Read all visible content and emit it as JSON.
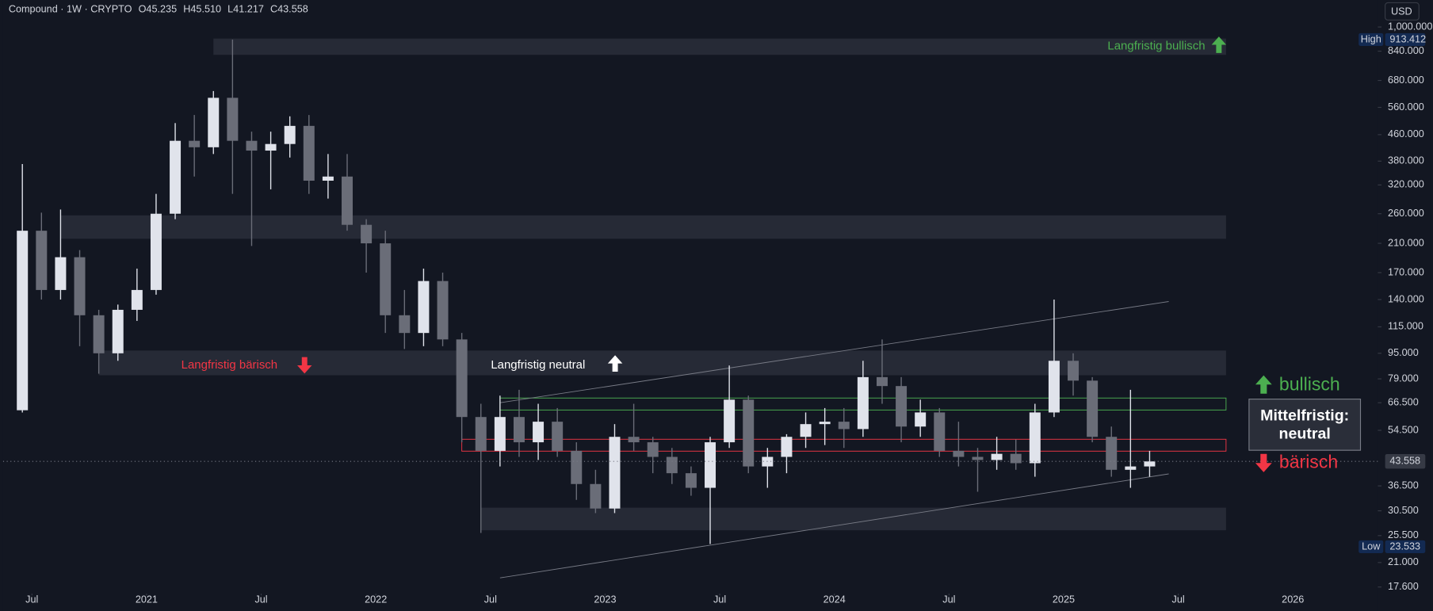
{
  "header": {
    "symbol": "Compound · 1W · CRYPTO",
    "open": "O45.235",
    "high": "H45.510",
    "low": "L41.217",
    "close": "C43.558"
  },
  "currency_button": "USD",
  "chart_data": {
    "type": "candlestick",
    "x": [
      "2020-06",
      "2020-07",
      "2020-08",
      "2020-09",
      "2020-10",
      "2020-11",
      "2020-12",
      "2021-01",
      "2021-02",
      "2021-03",
      "2021-04",
      "2021-05",
      "2021-06",
      "2021-07",
      "2021-08",
      "2021-09",
      "2021-10",
      "2021-11",
      "2021-12",
      "2022-01",
      "2022-02",
      "2022-03",
      "2022-04",
      "2022-05",
      "2022-06",
      "2022-07",
      "2022-08",
      "2022-09",
      "2022-10",
      "2022-11",
      "2022-12",
      "2023-01",
      "2023-02",
      "2023-03",
      "2023-04",
      "2023-05",
      "2023-06",
      "2023-07",
      "2023-08",
      "2023-09",
      "2023-10",
      "2023-11",
      "2023-12",
      "2024-01",
      "2024-02",
      "2024-03",
      "2024-04",
      "2024-05",
      "2024-06",
      "2024-07",
      "2024-08",
      "2024-09",
      "2024-10",
      "2024-11",
      "2024-12",
      "2025-01",
      "2025-02",
      "2025-03",
      "2025-04",
      "2025-05"
    ],
    "open": [
      63,
      230,
      150,
      190,
      125,
      95,
      130,
      150,
      260,
      440,
      420,
      600,
      440,
      410,
      430,
      490,
      330,
      340,
      240,
      210,
      125,
      110,
      160,
      105,
      60,
      47,
      60,
      50,
      58,
      47,
      37,
      31,
      52,
      50,
      45,
      40,
      36,
      50,
      68,
      42,
      45,
      52,
      57,
      58,
      55,
      80,
      75,
      56,
      62,
      47,
      45,
      44,
      46,
      43,
      62,
      90,
      78,
      52,
      41,
      42
    ],
    "high": [
      372,
      262,
      268,
      200,
      130,
      135,
      175,
      300,
      500,
      530,
      630,
      913,
      470,
      470,
      525,
      530,
      400,
      400,
      250,
      230,
      150,
      175,
      170,
      110,
      66,
      70,
      73,
      66,
      64,
      50,
      41,
      57,
      66,
      52,
      48,
      42,
      52,
      87,
      70,
      48,
      53,
      62,
      64,
      64,
      90,
      105,
      80,
      68,
      64,
      58,
      48,
      52,
      51,
      66,
      140,
      95,
      80,
      56,
      73,
      47
    ],
    "low": [
      62,
      140,
      140,
      100,
      82,
      90,
      120,
      145,
      250,
      340,
      400,
      300,
      206,
      310,
      390,
      300,
      290,
      230,
      170,
      110,
      98,
      100,
      100,
      50,
      26,
      42,
      45,
      44,
      45,
      33,
      30,
      30,
      47,
      40,
      37,
      34,
      24,
      48,
      40,
      36,
      40,
      48,
      49,
      48,
      52,
      66,
      50,
      52,
      45,
      42,
      35,
      41,
      41,
      39,
      60,
      70,
      50,
      39,
      36,
      39
    ],
    "close": [
      230,
      150,
      190,
      125,
      95,
      130,
      150,
      260,
      440,
      420,
      600,
      440,
      410,
      430,
      490,
      330,
      340,
      240,
      210,
      125,
      110,
      160,
      105,
      60,
      47,
      60,
      50,
      58,
      47,
      37,
      31,
      52,
      50,
      45,
      40,
      36,
      50,
      68,
      42,
      45,
      52,
      57,
      58,
      55,
      80,
      75,
      56,
      62,
      47,
      45,
      44,
      46,
      43,
      62,
      90,
      78,
      52,
      41,
      42,
      43.558
    ],
    "up_color": "#e0e3eb",
    "down_color": "#6a6d78",
    "log_scale": true,
    "grid": false,
    "ylim": [
      17,
      1215
    ],
    "yticks": [
      {
        "value": 17.6,
        "label": "17.600"
      },
      {
        "value": 21,
        "label": "21.000"
      },
      {
        "value": 25.5,
        "label": "25.500"
      },
      {
        "value": 30.5,
        "label": "30.500"
      },
      {
        "value": 36.5,
        "label": "36.500"
      },
      {
        "value": 54.5,
        "label": "54.500"
      },
      {
        "value": 66.5,
        "label": "66.500"
      },
      {
        "value": 79,
        "label": "79.000"
      },
      {
        "value": 95,
        "label": "95.000"
      },
      {
        "value": 115,
        "label": "115.000"
      },
      {
        "value": 140,
        "label": "140.000"
      },
      {
        "value": 170,
        "label": "170.000"
      },
      {
        "value": 210,
        "label": "210.000"
      },
      {
        "value": 260,
        "label": "260.000"
      },
      {
        "value": 320,
        "label": "320.000"
      },
      {
        "value": 380,
        "label": "380.000"
      },
      {
        "value": 460,
        "label": "460.000"
      },
      {
        "value": 560,
        "label": "560.000"
      },
      {
        "value": 680,
        "label": "680.000"
      },
      {
        "value": 840,
        "label": "840.000"
      },
      {
        "value": 1000,
        "label": "1,000.000"
      }
    ],
    "xlim": [
      "2020-05",
      "2026-05"
    ],
    "xticks": [
      {
        "value": "2020-07",
        "label": "Jul"
      },
      {
        "value": "2021-01",
        "label": "2021"
      },
      {
        "value": "2021-07",
        "label": "Jul"
      },
      {
        "value": "2022-01",
        "label": "2022"
      },
      {
        "value": "2022-07",
        "label": "Jul"
      },
      {
        "value": "2023-01",
        "label": "2023"
      },
      {
        "value": "2023-07",
        "label": "Jul"
      },
      {
        "value": "2024-01",
        "label": "2024"
      },
      {
        "value": "2024-07",
        "label": "Jul"
      },
      {
        "value": "2025-01",
        "label": "2025"
      },
      {
        "value": "2025-07",
        "label": "Jul"
      },
      {
        "value": "2026-01",
        "label": "2026"
      }
    ],
    "extremes": [
      {
        "name": "High",
        "value": 913.412
      },
      {
        "name": "Low",
        "value": 23.533
      }
    ],
    "last_price": 43.558,
    "zone_color": "#2a2e39",
    "zones": [
      {
        "from": "2021-04",
        "to": "2025-09",
        "low": 818,
        "high": 920
      },
      {
        "from": "2020-08",
        "to": "2025-09",
        "low": 217,
        "high": 257
      },
      {
        "from": "2020-10",
        "to": "2025-09",
        "low": 81.1,
        "high": 96.9
      },
      {
        "from": "2022-06",
        "to": "2025-09",
        "low": 26.5,
        "high": 31.2
      }
    ],
    "boxes": [
      {
        "from": "2022-07",
        "to": "2025-09",
        "low": 63.1,
        "high": 68.8,
        "color": "#4caf50"
      },
      {
        "from": "2022-05",
        "to": "2025-09",
        "low": 46.9,
        "high": 51.1,
        "color": "#f23645"
      }
    ],
    "trend_color": "#787b86",
    "trend_lines": [
      {
        "x": [
          "2022-07",
          "2025-06"
        ],
        "values": [
          66.5,
          138
        ]
      },
      {
        "x": [
          "2022-07",
          "2025-06"
        ],
        "values": [
          18.8,
          39.8
        ]
      }
    ],
    "annotations": [
      {
        "text": "Langfristig bullisch",
        "color": "#4caf50"
      },
      {
        "text": "Langfristig bärisch",
        "color": "#f23645"
      },
      {
        "text": "Langfristig neutral",
        "color": "#ffffff"
      },
      {
        "text": "bullisch",
        "color": "#4caf50"
      },
      {
        "lines": [
          "Mittelfristig:",
          "neutral"
        ],
        "color": "#ffffff"
      },
      {
        "text": "bärisch",
        "color": "#f23645"
      }
    ]
  }
}
